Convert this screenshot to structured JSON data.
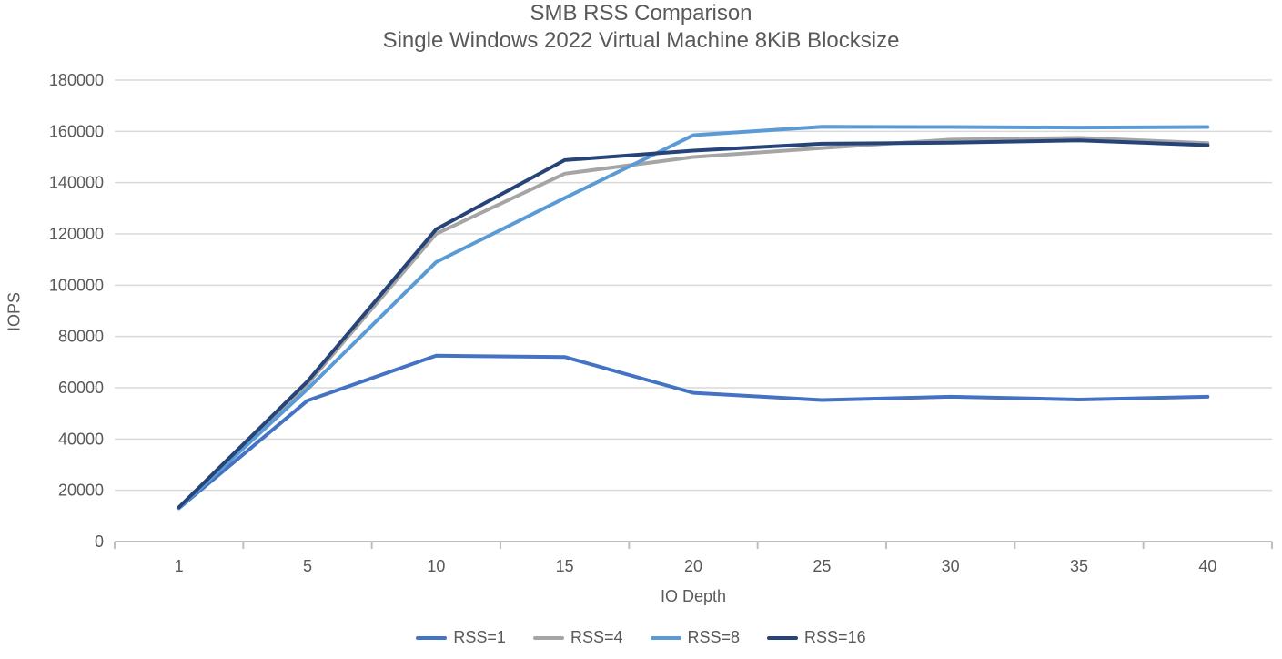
{
  "chart_data": {
    "type": "line",
    "title": "SMB RSS Comparison",
    "subtitle": "Single Windows 2022 Virtual Machine 8KiB Blocksize",
    "xlabel": "IO Depth",
    "ylabel": "IOPS",
    "categories": [
      1,
      5,
      10,
      15,
      20,
      25,
      30,
      35,
      40
    ],
    "ylim": [
      0,
      180000
    ],
    "ytick_step": 20000,
    "grid": true,
    "legend_position": "bottom",
    "series": [
      {
        "name": "RSS=1",
        "color": "#4472C4",
        "values": [
          13000,
          55000,
          72500,
          72000,
          58000,
          55200,
          56500,
          55400,
          56500
        ]
      },
      {
        "name": "RSS=4",
        "color": "#A5A5A5",
        "values": [
          13200,
          61500,
          120000,
          143500,
          150000,
          153500,
          156800,
          157500,
          155400
        ]
      },
      {
        "name": "RSS=8",
        "color": "#5B9BD5",
        "values": [
          13100,
          59500,
          109000,
          134000,
          158500,
          161800,
          161700,
          161500,
          161700
        ]
      },
      {
        "name": "RSS=16",
        "color": "#264478",
        "values": [
          13400,
          62500,
          121800,
          148800,
          152500,
          155200,
          155600,
          156500,
          154600
        ]
      }
    ],
    "colors": {
      "background": "#ffffff",
      "text": "#595959",
      "gridline": "#D9D9D9",
      "axis_line": "#BFBFBF"
    }
  }
}
